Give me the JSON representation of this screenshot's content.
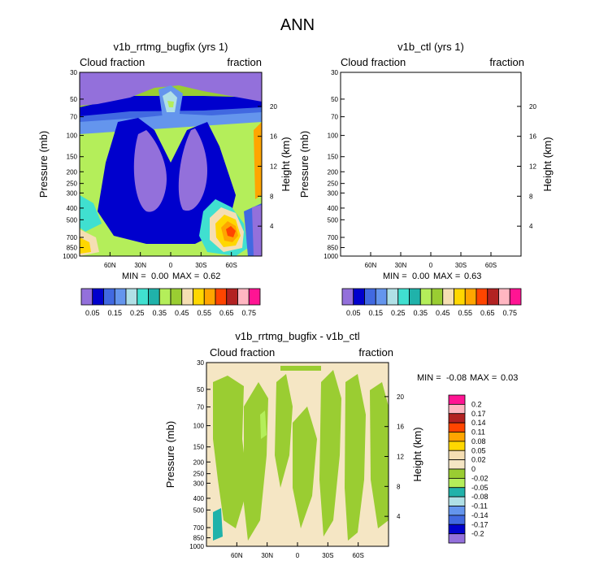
{
  "figure": {
    "title": "ANN"
  },
  "chart_data": [
    {
      "type": "heatmap",
      "title": "v1b_rrtmg_bugfix (yrs 1)",
      "variable_label": "Cloud fraction",
      "units_label": "fraction",
      "ylabel": "Pressure (mb)",
      "y2label": "Height (km)",
      "xticks": [
        "60N",
        "30N",
        "0",
        "30S",
        "60S"
      ],
      "yticks": [
        "30",
        "50",
        "70",
        "100",
        "150",
        "200",
        "250",
        "300",
        "400",
        "500",
        "700",
        "850",
        "1000"
      ],
      "y2ticks": [
        "20",
        "16",
        "12",
        "8",
        "4"
      ],
      "stats": {
        "min_label": "MIN =",
        "min": "0.00",
        "max_label": "MAX =",
        "max": "0.62"
      },
      "colorbar": {
        "orientation": "horizontal",
        "labels": [
          "0.05",
          "0.15",
          "0.25",
          "0.35",
          "0.45",
          "0.55",
          "0.65",
          "0.75"
        ],
        "colors": [
          "#9370db",
          "#0000cd",
          "#4169e1",
          "#6495ed",
          "#b0e0e6",
          "#40e0d0",
          "#20b2aa",
          "#b4ee5a",
          "#9acd32",
          "#f5deb3",
          "#ffd700",
          "#ffa500",
          "#ff4500",
          "#b22222",
          "#ffb6c1",
          "#ff1493"
        ]
      }
    },
    {
      "type": "heatmap",
      "title": "v1b_ctl (yrs 1)",
      "variable_label": "Cloud fraction",
      "units_label": "fraction",
      "ylabel": "Pressure (mb)",
      "y2label": "Height (km)",
      "xticks": [
        "60N",
        "30N",
        "0",
        "30S",
        "60S"
      ],
      "yticks": [
        "30",
        "50",
        "70",
        "100",
        "150",
        "200",
        "250",
        "300",
        "400",
        "500",
        "700",
        "850",
        "1000"
      ],
      "y2ticks": [
        "20",
        "16",
        "12",
        "8",
        "4"
      ],
      "stats": {
        "min_label": "MIN =",
        "min": "0.00",
        "max_label": "MAX =",
        "max": "0.63"
      },
      "colorbar": {
        "orientation": "horizontal",
        "labels": [
          "0.05",
          "0.15",
          "0.25",
          "0.35",
          "0.45",
          "0.55",
          "0.65",
          "0.75"
        ],
        "colors": [
          "#9370db",
          "#0000cd",
          "#4169e1",
          "#6495ed",
          "#b0e0e6",
          "#40e0d0",
          "#20b2aa",
          "#b4ee5a",
          "#9acd32",
          "#f5deb3",
          "#ffd700",
          "#ffa500",
          "#ff4500",
          "#b22222",
          "#ffb6c1",
          "#ff1493"
        ]
      }
    },
    {
      "type": "heatmap",
      "title": "v1b_rrtmg_bugfix - v1b_ctl",
      "variable_label": "Cloud fraction",
      "units_label": "fraction",
      "ylabel": "Pressure (mb)",
      "y2label": "Height (km)",
      "xticks": [
        "60N",
        "30N",
        "0",
        "30S",
        "60S"
      ],
      "yticks": [
        "30",
        "50",
        "70",
        "100",
        "150",
        "200",
        "250",
        "300",
        "400",
        "500",
        "700",
        "850",
        "1000"
      ],
      "y2ticks": [
        "20",
        "16",
        "12",
        "8",
        "4"
      ],
      "stats": {
        "min_label": "MIN =",
        "min": "-0.08",
        "max_label": "MAX =",
        "max": "0.03"
      },
      "colorbar": {
        "orientation": "vertical",
        "labels": [
          "0.2",
          "0.17",
          "0.14",
          "0.11",
          "0.08",
          "0.05",
          "0.02",
          "0",
          "-0.02",
          "-0.05",
          "-0.08",
          "-0.11",
          "-0.14",
          "-0.17",
          "-0.2"
        ],
        "colors": [
          "#ff1493",
          "#ffb6c1",
          "#b22222",
          "#ff4500",
          "#ffa500",
          "#ffd700",
          "#f5deb3",
          "#f5e6c4",
          "#9acd32",
          "#b4ee5a",
          "#20b2aa",
          "#b0e0e6",
          "#6495ed",
          "#4169e1",
          "#0000cd",
          "#9370db"
        ]
      }
    }
  ]
}
